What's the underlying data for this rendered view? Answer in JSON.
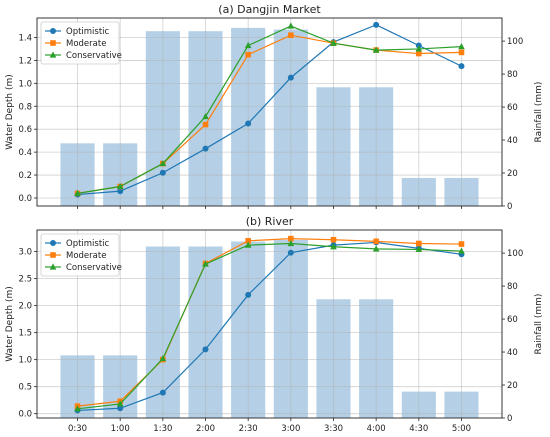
{
  "chart_data": [
    {
      "type": "line",
      "title": "(a) Dangjin Market",
      "ylabel": "Water Depth (m)",
      "y2label": "Rainfall (mm)",
      "x": [
        "0:30",
        "1:00",
        "1:30",
        "2:00",
        "2:30",
        "3:00",
        "3:30",
        "4:00",
        "4:30",
        "5:00"
      ],
      "ylim": [
        -0.07,
        1.57
      ],
      "yticks": [
        0.0,
        0.2,
        0.4,
        0.6,
        0.8,
        1.0,
        1.2,
        1.4
      ],
      "y2lim": [
        0,
        114
      ],
      "y2ticks": [
        0,
        20,
        40,
        60,
        80,
        100
      ],
      "grid": true,
      "legend": "upper-left",
      "bars": {
        "name": "",
        "color": "#b5d0e6",
        "values": [
          38,
          38,
          106,
          106,
          108,
          107,
          72,
          72,
          17,
          17
        ]
      },
      "series": [
        {
          "name": "Optimistic",
          "color": "#1f77b4",
          "marker": "circle",
          "values": [
            0.03,
            0.06,
            0.22,
            0.43,
            0.65,
            1.05,
            1.36,
            1.51,
            1.33,
            1.15
          ]
        },
        {
          "name": "Moderate",
          "color": "#ff7f0e",
          "marker": "square",
          "values": [
            0.04,
            0.1,
            0.3,
            0.64,
            1.25,
            1.42,
            1.35,
            1.29,
            1.26,
            1.27
          ]
        },
        {
          "name": "Conservative",
          "color": "#2ca02c",
          "marker": "triangle",
          "values": [
            0.04,
            0.1,
            0.3,
            0.71,
            1.33,
            1.5,
            1.35,
            1.29,
            1.3,
            1.32
          ]
        }
      ]
    },
    {
      "type": "line",
      "title": "(b) River",
      "ylabel": "Water Depth (m)",
      "y2label": "Rainfall (mm)",
      "x": [
        "0:30",
        "1:00",
        "1:30",
        "2:00",
        "2:30",
        "3:00",
        "3:30",
        "4:00",
        "4:30",
        "5:00"
      ],
      "ylim": [
        -0.08,
        3.4
      ],
      "yticks": [
        0.0,
        0.5,
        1.0,
        1.5,
        2.0,
        2.5,
        3.0
      ],
      "y2lim": [
        0,
        114
      ],
      "y2ticks": [
        0,
        20,
        40,
        60,
        80,
        100
      ],
      "grid": true,
      "legend": "upper-left",
      "bars": {
        "name": "",
        "color": "#b5d0e6",
        "values": [
          38,
          38,
          104,
          104,
          107,
          108,
          72,
          72,
          16,
          16
        ]
      },
      "series": [
        {
          "name": "Optimistic",
          "color": "#1f77b4",
          "marker": "circle",
          "values": [
            0.06,
            0.1,
            0.39,
            1.19,
            2.2,
            2.98,
            3.12,
            3.17,
            3.06,
            2.95
          ]
        },
        {
          "name": "Moderate",
          "color": "#ff7f0e",
          "marker": "square",
          "values": [
            0.14,
            0.23,
            1.0,
            2.78,
            3.2,
            3.24,
            3.22,
            3.19,
            3.15,
            3.14
          ]
        },
        {
          "name": "Conservative",
          "color": "#2ca02c",
          "marker": "triangle",
          "values": [
            0.09,
            0.18,
            1.02,
            2.77,
            3.12,
            3.15,
            3.09,
            3.05,
            3.04,
            3.01
          ]
        }
      ]
    }
  ]
}
